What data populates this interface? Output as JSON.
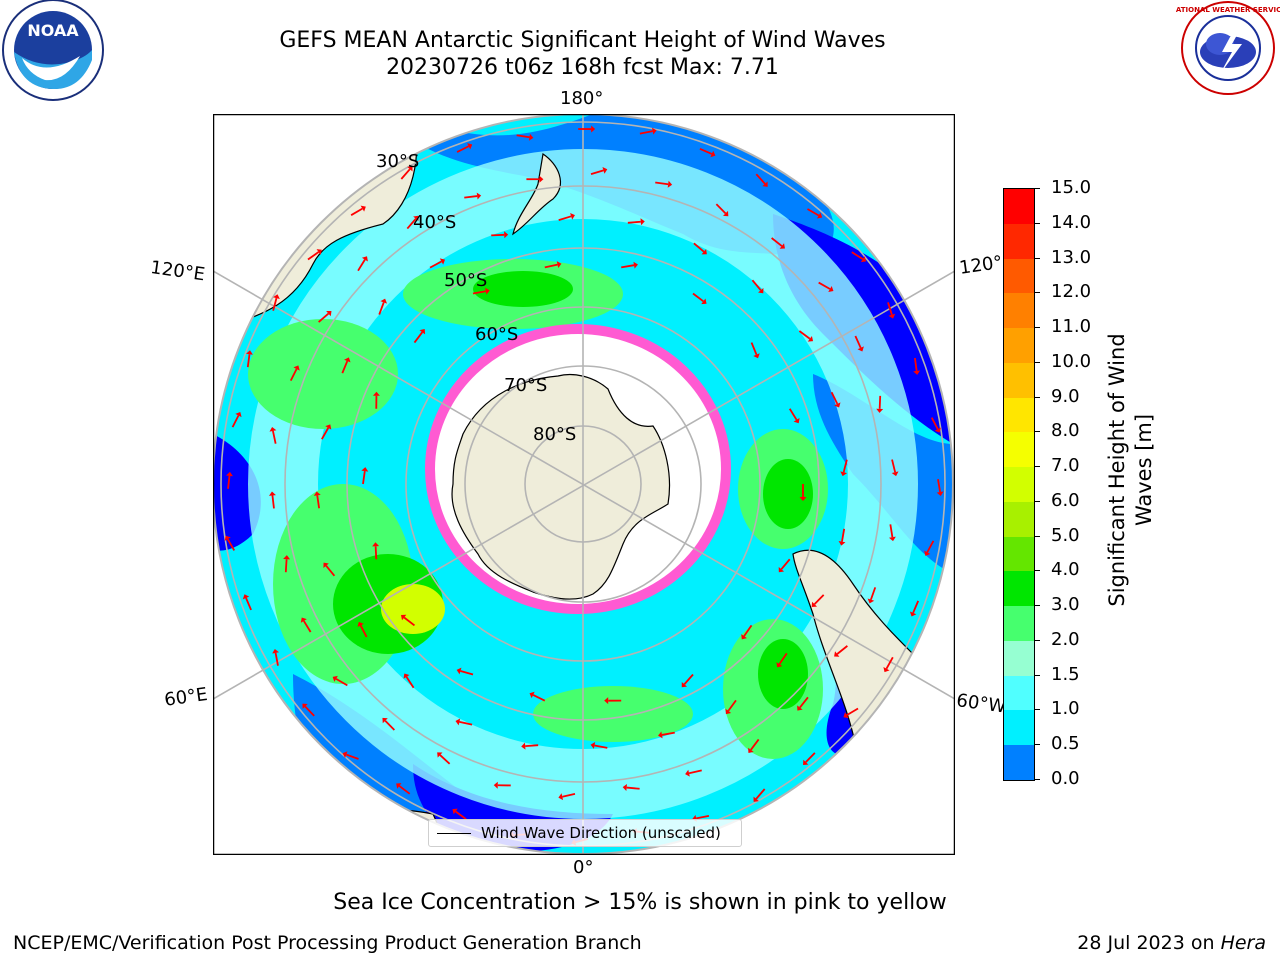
{
  "title_line1": "GEFS MEAN Antarctic Significant Height of Wind Waves",
  "title_line2": "20230726 t06z 168h fcst   Max: 7.71",
  "lon_labels": {
    "top": "180°",
    "bottom": "0°",
    "left_upper": "120°E",
    "left_lower": "60°E",
    "right_upper": "120°",
    "right_lower": "60°W"
  },
  "lat_labels": [
    "30°S",
    "40°S",
    "50°S",
    "60°S",
    "70°S",
    "80°S"
  ],
  "legend_label": "Wind Wave Direction (unscaled)",
  "colorbar": {
    "label_line1": "Significant Height of Wind",
    "label_line2": "Waves [m]",
    "ticks": [
      "15.0",
      "14.0",
      "13.0",
      "12.0",
      "11.0",
      "10.0",
      "9.0",
      "8.0",
      "7.0",
      "6.0",
      "5.0",
      "4.0",
      "3.0",
      "2.0",
      "1.5",
      "1.0",
      "0.5",
      "0.0"
    ],
    "colors": [
      "#ff0000",
      "#ff2800",
      "#ff5a00",
      "#ff8000",
      "#ffa000",
      "#ffc000",
      "#ffe600",
      "#f5ff00",
      "#d2ff00",
      "#a8f000",
      "#64e600",
      "#00e600",
      "#46ff6e",
      "#96ffd2",
      "#50ffff",
      "#00f0ff",
      "#0080ff",
      "#0000ff"
    ]
  },
  "colors": {
    "land": "#efedda",
    "ice": "#ffffff",
    "deep_blue": "#0000ff",
    "blue": "#0080ff",
    "cyan": "#00f0ff",
    "light_cyan": "#96ffff",
    "green": "#46ff6e",
    "bright_green": "#00e600",
    "yellow_green": "#d2ff00",
    "sea_ice_edge": "#ff5ad2",
    "arrow": "#ff0000"
  },
  "note": "Sea Ice Concentration > 15% is shown in pink to yellow",
  "footer_left": "NCEP/EMC/Verification Post Processing Product Generation Branch",
  "footer_right_prefix": "28 Jul 2023 on ",
  "footer_right_host": "Hera",
  "logos": {
    "left": "NOAA",
    "right": "NATIONAL WEATHER SERVICE"
  }
}
